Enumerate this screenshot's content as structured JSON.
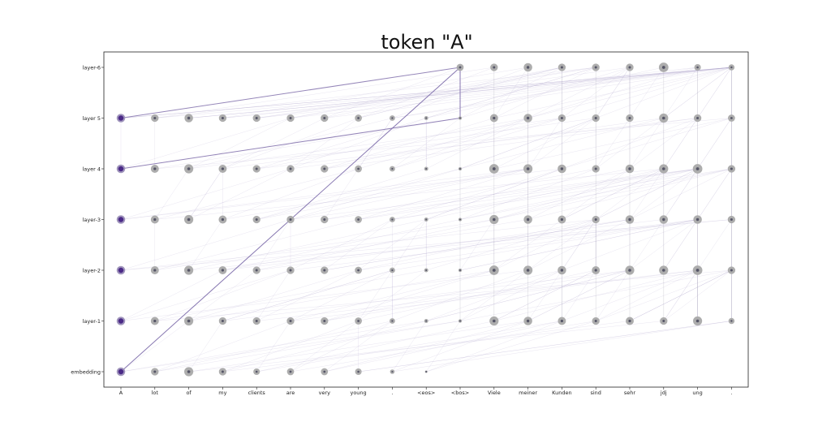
{
  "chart_data": {
    "type": "scatter",
    "title": "token \"A\"",
    "xlabel": "",
    "ylabel": "",
    "x_tokens": [
      "A",
      "lot",
      "of",
      "my",
      "clients",
      "are",
      "very",
      "young",
      ".",
      "<eos>",
      "<bos>",
      "Viele",
      "meiner",
      "Kunden",
      "sind",
      "sehr",
      "jdj",
      "ung",
      "."
    ],
    "y_layers": [
      "embedding",
      "layer-1",
      "layer-2",
      "layer-3",
      "layer 4",
      "layer 5",
      "layer-6"
    ],
    "grid": false,
    "colors": {
      "outer": "#a9a9a9",
      "inner": "#555566",
      "highlight_inner": "#4b2a87",
      "highlight_outer": "#9b8fb8",
      "flow_line": "#a89cc8"
    },
    "node_sizes": [
      [
        3.4,
        3.0,
        3.6,
        3.0,
        2.6,
        2.8,
        2.8,
        2.6,
        1.8,
        1.0
      ],
      [
        3.4,
        3.2,
        3.6,
        3.0,
        3.0,
        3.0,
        3.0,
        2.8,
        2.2,
        1.6,
        1.4,
        3.6,
        3.4,
        3.2,
        3.0,
        3.2,
        3.0,
        3.6,
        2.4
      ],
      [
        3.4,
        3.2,
        3.6,
        3.2,
        3.0,
        3.0,
        3.0,
        2.8,
        2.2,
        1.6,
        1.4,
        3.8,
        3.6,
        3.4,
        3.2,
        3.6,
        3.6,
        3.8,
        3.0
      ],
      [
        3.4,
        3.2,
        3.6,
        3.2,
        3.0,
        3.0,
        3.0,
        2.8,
        2.2,
        1.6,
        1.4,
        3.6,
        3.4,
        3.2,
        3.0,
        3.4,
        3.4,
        3.4,
        3.0
      ],
      [
        3.4,
        3.2,
        3.6,
        3.2,
        3.0,
        3.0,
        3.0,
        2.8,
        2.2,
        1.6,
        1.4,
        3.8,
        3.6,
        3.4,
        3.0,
        3.4,
        3.6,
        3.8,
        3.0
      ],
      [
        3.4,
        3.0,
        3.4,
        3.0,
        3.0,
        3.0,
        3.0,
        2.8,
        2.2,
        1.6,
        1.4,
        3.2,
        3.4,
        3.0,
        3.0,
        3.0,
        3.6,
        3.0,
        2.8
      ],
      [
        null,
        null,
        null,
        null,
        null,
        null,
        null,
        null,
        null,
        null,
        2.8,
        3.0,
        3.4,
        3.0,
        3.0,
        3.0,
        3.8,
        2.6,
        2.4
      ]
    ],
    "flow_paths": [
      {
        "from": [
          0,
          0
        ],
        "to": [
          10,
          6
        ],
        "strength": 0.9
      },
      {
        "from": [
          0,
          5
        ],
        "to": [
          10,
          6
        ],
        "strength": 0.8
      },
      {
        "from": [
          0,
          4
        ],
        "to": [
          10,
          5
        ],
        "strength": 0.8
      },
      {
        "from": [
          10,
          5
        ],
        "to": [
          10,
          6
        ],
        "strength": 0.9
      }
    ]
  }
}
